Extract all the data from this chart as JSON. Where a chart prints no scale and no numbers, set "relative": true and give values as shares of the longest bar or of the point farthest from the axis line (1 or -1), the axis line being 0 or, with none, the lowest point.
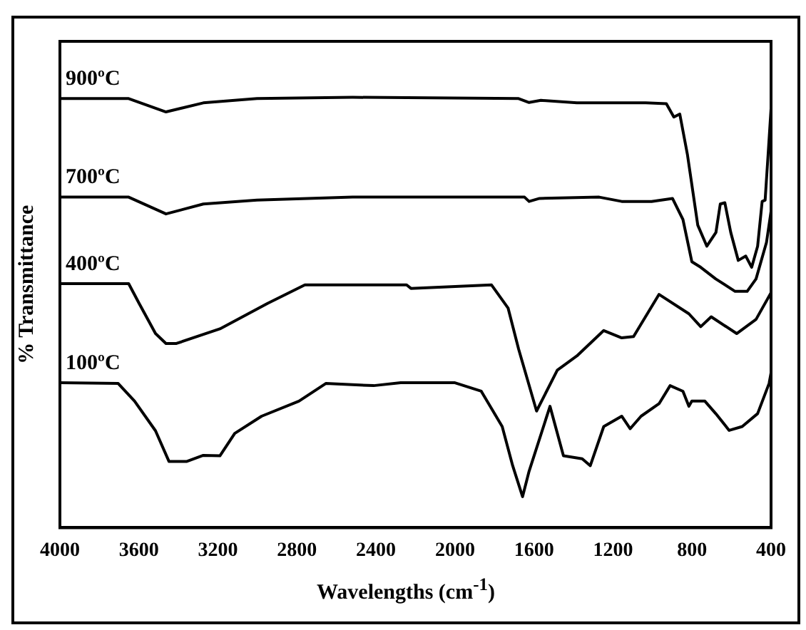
{
  "chart_data": {
    "type": "line",
    "relative": true,
    "xlabel": "Wavelengths (cm$^{-1}$)",
    "ylabel": "% Transmittance",
    "xlim": [
      4000,
      400
    ],
    "xticks": [
      4000,
      3600,
      3200,
      2800,
      2400,
      2000,
      1600,
      1200,
      800,
      400
    ],
    "grid": false,
    "legend": false,
    "marker": "none",
    "line_style": "solid",
    "series": [
      {
        "name": "900ºC",
        "color": "#000000",
        "x": [
          4000,
          3652,
          3463,
          3274,
          3002,
          2518,
          1678,
          1625,
          1565,
          1383,
          1035,
          930,
          892,
          862,
          823,
          771,
          725,
          679,
          657,
          634,
          604,
          566,
          528,
          498,
          468,
          445,
          430,
          415,
          400
        ],
        "values": [
          0.997,
          0.997,
          0.966,
          0.987,
          0.997,
          1.0,
          0.997,
          0.988,
          0.993,
          0.987,
          0.987,
          0.985,
          0.954,
          0.961,
          0.866,
          0.703,
          0.654,
          0.686,
          0.752,
          0.755,
          0.686,
          0.621,
          0.631,
          0.605,
          0.654,
          0.758,
          0.761,
          0.866,
          0.974
        ]
      },
      {
        "name": "700ºC",
        "color": "#000000",
        "x": [
          4000,
          3652,
          3463,
          3274,
          3002,
          2518,
          1648,
          1625,
          1572,
          1270,
          1156,
          1005,
          899,
          846,
          801,
          756,
          680,
          582,
          521,
          476,
          423,
          400
        ],
        "values": [
          0.768,
          0.768,
          0.729,
          0.752,
          0.761,
          0.768,
          0.768,
          0.758,
          0.765,
          0.768,
          0.758,
          0.758,
          0.765,
          0.716,
          0.618,
          0.605,
          0.578,
          0.549,
          0.549,
          0.578,
          0.663,
          0.735
        ]
      },
      {
        "name": "400ºC",
        "color": "#000000",
        "x": [
          4000,
          3652,
          3599,
          3516,
          3463,
          3410,
          3190,
          2949,
          2760,
          2245,
          2223,
          1815,
          1731,
          1678,
          1587,
          1482,
          1383,
          1247,
          1156,
          1096,
          967,
          816,
          756,
          703,
          574,
          476,
          400
        ],
        "values": [
          0.567,
          0.567,
          0.521,
          0.451,
          0.428,
          0.428,
          0.462,
          0.521,
          0.564,
          0.564,
          0.556,
          0.564,
          0.51,
          0.415,
          0.271,
          0.366,
          0.399,
          0.458,
          0.441,
          0.444,
          0.542,
          0.497,
          0.467,
          0.49,
          0.451,
          0.484,
          0.546
        ]
      },
      {
        "name": "100ºC",
        "color": "#000000",
        "x": [
          4000,
          3705,
          3622,
          3516,
          3448,
          3357,
          3274,
          3190,
          3115,
          2979,
          2790,
          2654,
          2412,
          2275,
          2003,
          1867,
          1761,
          1708,
          1658,
          1625,
          1519,
          1451,
          1356,
          1315,
          1247,
          1156,
          1113,
          1058,
          967,
          911,
          846,
          816,
          801,
          735,
          680,
          612,
          546,
          468,
          410,
          400
        ],
        "values": [
          0.337,
          0.335,
          0.294,
          0.225,
          0.154,
          0.154,
          0.168,
          0.167,
          0.219,
          0.259,
          0.294,
          0.335,
          0.33,
          0.337,
          0.337,
          0.317,
          0.235,
          0.144,
          0.072,
          0.131,
          0.282,
          0.167,
          0.16,
          0.144,
          0.235,
          0.259,
          0.23,
          0.259,
          0.288,
          0.33,
          0.317,
          0.282,
          0.294,
          0.294,
          0.265,
          0.226,
          0.235,
          0.265,
          0.335,
          0.36
        ]
      }
    ]
  }
}
